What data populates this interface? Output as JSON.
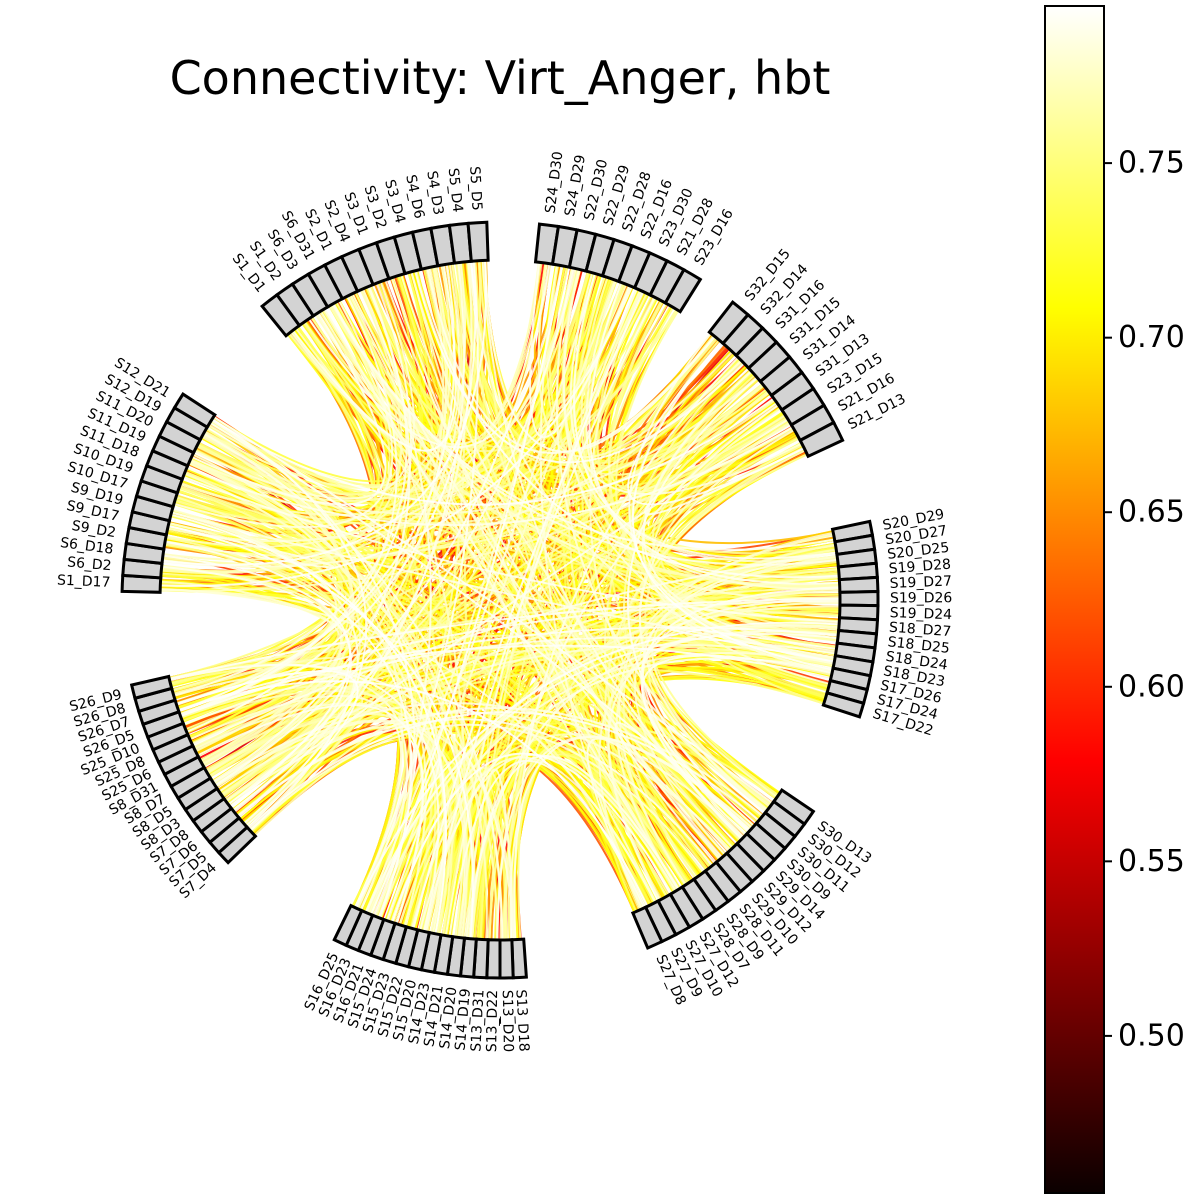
{
  "chart_data": {
    "type": "chord",
    "title": "Connectivity: Virt_Anger, hbt",
    "colormap": "hot",
    "background": "#ffffff",
    "node_fill": "#d3d3d3",
    "node_edge": "#000000",
    "groups": [
      {
        "name": "group-frontal-top",
        "labels": [
          "S1_D1",
          "S1_D2",
          "S6_D3",
          "S6_D31",
          "S2_D1",
          "S2_D4",
          "S3_D1",
          "S3_D2",
          "S3_D4",
          "S4_D6",
          "S4_D3",
          "S5_D4",
          "S5_D5"
        ]
      },
      {
        "name": "group-frontal-left",
        "labels": [
          "S1_D17",
          "S6_D2",
          "S6_D18",
          "S9_D2",
          "S9_D17",
          "S9_D19",
          "S10_D17",
          "S10_D19",
          "S11_D18",
          "S11_D19",
          "S11_D20",
          "S12_D19",
          "S12_D21"
        ]
      },
      {
        "name": "group-left-lower",
        "labels": [
          "S7_D4",
          "S7_D5",
          "S7_D6",
          "S7_D8",
          "S8_D3",
          "S8_D5",
          "S8_D7",
          "S8_D31",
          "S25_D6",
          "S25_D8",
          "S25_D10",
          "S26_D5",
          "S26_D7",
          "S26_D8",
          "S26_D9"
        ]
      },
      {
        "name": "group-bottom",
        "labels": [
          "S13_D18",
          "S13_D20",
          "S13_D22",
          "S13_D31",
          "S14_D19",
          "S14_D20",
          "S14_D21",
          "S14_D23",
          "S15_D20",
          "S15_D22",
          "S15_D23",
          "S15_D24",
          "S16_D21",
          "S16_D23",
          "S16_D25"
        ]
      },
      {
        "name": "group-right-lower",
        "labels": [
          "S30_D13",
          "S30_D12",
          "S30_D11",
          "S30_D9",
          "S29_D14",
          "S29_D12",
          "S29_D10",
          "S28_D11",
          "S28_D9",
          "S28_D7",
          "S27_D12",
          "S27_D10",
          "S27_D9",
          "S27_D8"
        ]
      },
      {
        "name": "group-right",
        "labels": [
          "S20_D29",
          "S20_D27",
          "S20_D25",
          "S19_D28",
          "S19_D27",
          "S19_D26",
          "S19_D24",
          "S18_D27",
          "S18_D25",
          "S18_D24",
          "S18_D23",
          "S17_D26",
          "S17_D24",
          "S17_D22"
        ]
      },
      {
        "name": "group-right-upper",
        "labels": [
          "S32_D15",
          "S32_D14",
          "S31_D16",
          "S31_D15",
          "S31_D14",
          "S31_D13",
          "S23_D15",
          "S21_D16",
          "S21_D13"
        ]
      },
      {
        "name": "group-top",
        "labels": [
          "S24_D30",
          "S24_D29",
          "S22_D30",
          "S22_D29",
          "S22_D28",
          "S22_D16",
          "S23_D30",
          "S21_D28",
          "S23_D16"
        ]
      }
    ],
    "colorbar": {
      "vmin": 0.455,
      "vmax": 0.795,
      "ticks": [
        0.5,
        0.55,
        0.6,
        0.65,
        0.7,
        0.75
      ],
      "tick_labels": [
        "0.50",
        "0.55",
        "0.60",
        "0.65",
        "0.70",
        "0.75"
      ]
    },
    "connections": {
      "count": 1100,
      "value_range": [
        0.55,
        0.795
      ],
      "note": "dense all-to-all connectivity"
    }
  }
}
